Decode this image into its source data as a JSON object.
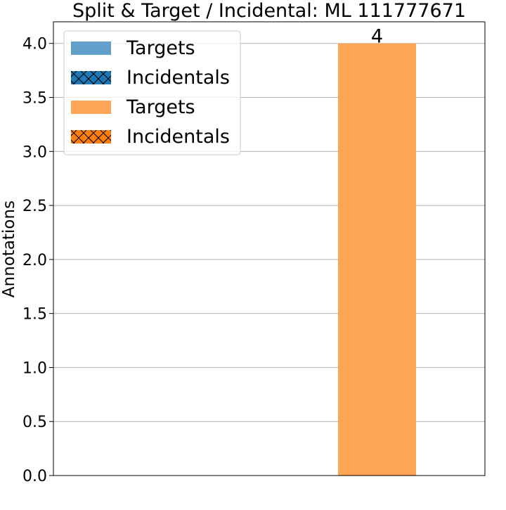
{
  "chart_data": {
    "type": "bar",
    "title": "Split & Target / Incidental: ML 111777671",
    "xlabel": "",
    "ylabel": "Annotations",
    "ylim": [
      0,
      4.2
    ],
    "yticks": [
      0.0,
      0.5,
      1.0,
      1.5,
      2.0,
      2.5,
      3.0,
      3.5,
      4.0
    ],
    "ytick_labels": [
      "0.0",
      "0.5",
      "1.0",
      "1.5",
      "2.0",
      "2.5",
      "3.0",
      "3.5",
      "4.0"
    ],
    "grid": "horizontal",
    "legend_position": "top-left",
    "colors": {
      "blue_targets": "#62a0cb",
      "blue_incidentals": "#1f77b4",
      "orange_targets": "#ffa556",
      "orange_incidentals": "#ff7f0e"
    },
    "bar_slots": 2,
    "series": [
      {
        "name": "Targets",
        "color": "#62a0cb",
        "hatch": "none",
        "slot": 0,
        "values": [
          0
        ]
      },
      {
        "name": "Incidentals",
        "color": "#1f77b4",
        "hatch": "x",
        "slot": 0,
        "values": [
          0
        ]
      },
      {
        "name": "Targets",
        "color": "#ffa556",
        "hatch": "none",
        "slot": 1,
        "values": [
          4
        ]
      },
      {
        "name": "Incidentals",
        "color": "#ff7f0e",
        "hatch": "x",
        "slot": 1,
        "values": [
          0
        ]
      }
    ],
    "data_labels": [
      {
        "slot": 1,
        "value": 4,
        "text": "4"
      }
    ]
  }
}
